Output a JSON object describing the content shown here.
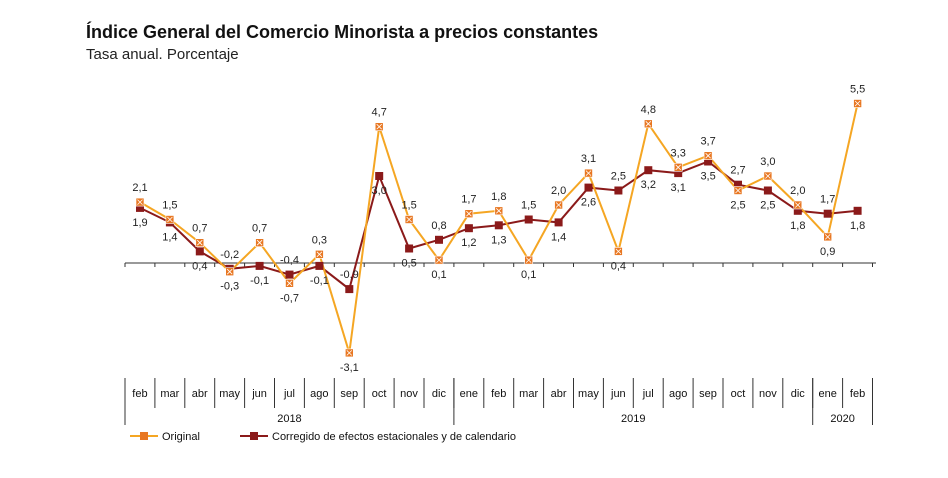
{
  "title": "Índice General del Comercio Minorista a precios constantes",
  "subtitle": "Tasa anual. Porcentaje",
  "colors": {
    "original": "#F5A623",
    "original_marker": "#E87722",
    "corrected": "#8B1A1A",
    "axis": "#333333"
  },
  "chart_data": {
    "type": "line",
    "title": "",
    "xlabel": "",
    "ylabel": "",
    "ylim": [
      -3.5,
      6.5
    ],
    "grid": false,
    "legend": "bottom-left",
    "categories": [
      "feb",
      "mar",
      "abr",
      "may",
      "jun",
      "jul",
      "ago",
      "sep",
      "oct",
      "nov",
      "dic",
      "ene",
      "feb",
      "mar",
      "abr",
      "may",
      "jun",
      "jul",
      "ago",
      "sep",
      "oct",
      "nov",
      "dic",
      "ene",
      "feb"
    ],
    "years": [
      {
        "label": "2018",
        "start": 0,
        "end": 10
      },
      {
        "label": "2019",
        "start": 11,
        "end": 22
      },
      {
        "label": "2020",
        "start": 23,
        "end": 24
      }
    ],
    "series": [
      {
        "name": "Original",
        "values": [
          2.1,
          1.5,
          0.7,
          -0.3,
          0.7,
          -0.7,
          0.3,
          -3.1,
          4.7,
          1.5,
          0.1,
          1.7,
          1.8,
          0.1,
          2.0,
          3.1,
          0.4,
          4.8,
          3.3,
          3.7,
          2.5,
          3.0,
          2.0,
          0.9,
          5.5
        ],
        "labels": [
          "2,1",
          "1,5",
          "0,7",
          "-0,3",
          "0,7",
          "-0,7",
          "0,3",
          "-3,1",
          "4,7",
          "1,5",
          "0,1",
          "1,7",
          "1,8",
          "0,1",
          "2,0",
          "3,1",
          "0,4",
          "4,8",
          "3,3",
          "3,7",
          "2,5",
          "3,0",
          "2,0",
          "0,9",
          "5,5"
        ]
      },
      {
        "name": "Corregido de efectos estacionales y de calendario",
        "values": [
          1.9,
          1.4,
          0.4,
          -0.2,
          -0.1,
          -0.4,
          -0.1,
          -0.9,
          3.0,
          0.5,
          0.8,
          1.2,
          1.3,
          1.5,
          1.4,
          2.6,
          2.5,
          3.2,
          3.1,
          3.5,
          2.7,
          2.5,
          1.8,
          1.7,
          1.8
        ],
        "labels": [
          "1,9",
          "1,4",
          "0,4",
          "-0,2",
          "-0,1",
          "-0,4",
          "-0,1",
          "-0,9",
          "3,0",
          "0,5",
          "0,8",
          "1,2",
          "1,3",
          "1,5",
          "1,4",
          "2,6",
          "2,5",
          "3,2",
          "3,1",
          "3,5",
          "2,7",
          "2,5",
          "1,8",
          "1,7",
          "1,8"
        ]
      }
    ]
  }
}
